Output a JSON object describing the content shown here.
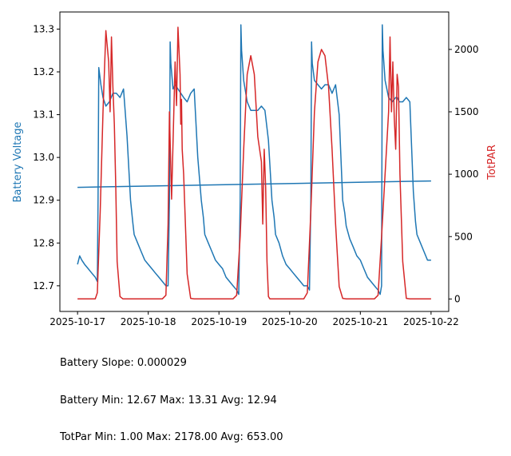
{
  "colors": {
    "battery": "#1f77b4",
    "par": "#d62728",
    "axis": "#000000",
    "background": "#ffffff"
  },
  "stats": {
    "slope_line": "Battery Slope: 0.000029",
    "battery_line": "Battery Min: 12.67 Max: 13.31 Avg: 12.94",
    "par_line": "TotPar Min: 1.00 Max: 2178.00 Avg: 653.00"
  },
  "chart_data": {
    "type": "line",
    "title": "",
    "xlabel": "",
    "ylabel": "Battery Voltage",
    "y2label": "TotPAR",
    "x_unit": "days since 2025-10-17",
    "xlim": [
      -0.25,
      5.25
    ],
    "ylim": [
      12.64,
      13.34
    ],
    "y2lim": [
      -100,
      2300
    ],
    "x_ticks": [
      0,
      1,
      2,
      3,
      4,
      5
    ],
    "x_tick_labels": [
      "2025-10-17",
      "2025-10-18",
      "2025-10-19",
      "2025-10-20",
      "2025-10-21",
      "2025-10-22"
    ],
    "y_ticks": [
      12.7,
      12.8,
      12.9,
      13.0,
      13.1,
      13.2,
      13.3
    ],
    "y_tick_labels": [
      "12.7",
      "12.8",
      "12.9",
      "13.0",
      "13.1",
      "13.2",
      "13.3"
    ],
    "y2_ticks": [
      0,
      500,
      1000,
      1500,
      2000
    ],
    "y2_tick_labels": [
      "0",
      "500",
      "1000",
      "1500",
      "2000"
    ],
    "series": [
      {
        "name": "Battery Voltage",
        "axis": "left",
        "color": "#1f77b4",
        "x": [
          0.0,
          0.03,
          0.06,
          0.1,
          0.15,
          0.2,
          0.25,
          0.28,
          0.29,
          0.3,
          0.33,
          0.36,
          0.4,
          0.45,
          0.5,
          0.55,
          0.6,
          0.65,
          0.7,
          0.75,
          0.78,
          0.8,
          0.85,
          0.9,
          0.95,
          1.0,
          1.05,
          1.1,
          1.15,
          1.2,
          1.25,
          1.28,
          1.3,
          1.31,
          1.32,
          1.35,
          1.38,
          1.42,
          1.5,
          1.55,
          1.6,
          1.65,
          1.7,
          1.75,
          1.78,
          1.8,
          1.85,
          1.9,
          1.95,
          2.0,
          2.05,
          2.1,
          2.15,
          2.2,
          2.25,
          2.28,
          2.3,
          2.31,
          2.32,
          2.35,
          2.4,
          2.45,
          2.5,
          2.55,
          2.6,
          2.65,
          2.7,
          2.75,
          2.78,
          2.8,
          2.85,
          2.9,
          2.95,
          3.0,
          3.05,
          3.1,
          3.15,
          3.2,
          3.25,
          3.28,
          3.3,
          3.31,
          3.32,
          3.35,
          3.4,
          3.45,
          3.5,
          3.55,
          3.6,
          3.65,
          3.7,
          3.75,
          3.78,
          3.8,
          3.85,
          3.9,
          3.95,
          4.0,
          4.05,
          4.1,
          4.15,
          4.2,
          4.25,
          4.28,
          4.3,
          4.31,
          4.32,
          4.35,
          4.4,
          4.45,
          4.5,
          4.52,
          4.55,
          4.6,
          4.65,
          4.7,
          4.75,
          4.78,
          4.8,
          4.85,
          4.9,
          4.95,
          5.0
        ],
        "y": [
          12.75,
          12.77,
          12.76,
          12.75,
          12.74,
          12.73,
          12.72,
          12.71,
          12.9,
          13.21,
          13.17,
          13.14,
          13.12,
          13.13,
          13.15,
          13.15,
          13.14,
          13.16,
          13.05,
          12.9,
          12.85,
          12.82,
          12.8,
          12.78,
          12.76,
          12.75,
          12.74,
          12.73,
          12.72,
          12.71,
          12.7,
          12.7,
          12.9,
          13.27,
          13.22,
          13.16,
          13.17,
          13.16,
          13.14,
          13.13,
          13.15,
          13.16,
          13.0,
          12.9,
          12.86,
          12.82,
          12.8,
          12.78,
          12.76,
          12.75,
          12.74,
          12.72,
          12.71,
          12.7,
          12.69,
          12.68,
          12.9,
          13.31,
          13.25,
          13.18,
          13.13,
          13.11,
          13.11,
          13.11,
          13.12,
          13.11,
          13.04,
          12.9,
          12.86,
          12.82,
          12.8,
          12.77,
          12.75,
          12.74,
          12.73,
          12.72,
          12.71,
          12.7,
          12.7,
          12.69,
          12.9,
          13.27,
          13.22,
          13.18,
          13.17,
          13.16,
          13.17,
          13.17,
          13.15,
          13.17,
          13.1,
          12.9,
          12.87,
          12.84,
          12.81,
          12.79,
          12.77,
          12.76,
          12.74,
          12.72,
          12.71,
          12.7,
          12.69,
          12.68,
          12.7,
          13.31,
          13.25,
          13.18,
          13.14,
          13.13,
          13.14,
          13.14,
          13.13,
          13.13,
          13.14,
          13.13,
          12.92,
          12.85,
          12.82,
          12.8,
          12.78,
          12.76,
          12.76
        ]
      },
      {
        "name": "Battery trend",
        "axis": "left",
        "color": "#1f77b4",
        "x": [
          0.0,
          5.0
        ],
        "y": [
          12.93,
          12.945
        ]
      },
      {
        "name": "TotPAR",
        "axis": "right",
        "color": "#d62728",
        "x": [
          0.0,
          0.1,
          0.2,
          0.25,
          0.28,
          0.32,
          0.36,
          0.4,
          0.44,
          0.46,
          0.48,
          0.5,
          0.52,
          0.54,
          0.56,
          0.6,
          0.64,
          0.68,
          0.7,
          0.72,
          0.74,
          0.78,
          0.9,
          1.0,
          1.1,
          1.2,
          1.25,
          1.28,
          1.3,
          1.33,
          1.35,
          1.38,
          1.4,
          1.42,
          1.45,
          1.46,
          1.47,
          1.48,
          1.5,
          1.55,
          1.6,
          1.65,
          1.7,
          1.75,
          1.8,
          1.9,
          2.0,
          2.1,
          2.2,
          2.25,
          2.3,
          2.35,
          2.4,
          2.45,
          2.5,
          2.55,
          2.6,
          2.62,
          2.64,
          2.66,
          2.68,
          2.7,
          2.72,
          2.75,
          2.8,
          2.9,
          3.0,
          3.1,
          3.2,
          3.25,
          3.3,
          3.35,
          3.4,
          3.45,
          3.5,
          3.55,
          3.6,
          3.65,
          3.7,
          3.75,
          3.8,
          3.9,
          4.0,
          4.1,
          4.2,
          4.25,
          4.3,
          4.35,
          4.4,
          4.42,
          4.44,
          4.46,
          4.48,
          4.5,
          4.52,
          4.54,
          4.56,
          4.6,
          4.65,
          4.7,
          4.75,
          4.8,
          4.9,
          5.0
        ],
        "y": [
          1,
          1,
          1,
          1,
          50,
          700,
          1500,
          2150,
          1900,
          1500,
          2100,
          1700,
          1400,
          900,
          300,
          20,
          1,
          1,
          1,
          1,
          1,
          1,
          1,
          1,
          1,
          1,
          30,
          600,
          1500,
          800,
          1250,
          1900,
          1550,
          2178,
          1800,
          1400,
          1600,
          1200,
          1000,
          200,
          5,
          1,
          1,
          1,
          1,
          1,
          1,
          1,
          1,
          30,
          500,
          1200,
          1800,
          1950,
          1800,
          1300,
          1100,
          600,
          1200,
          900,
          300,
          20,
          1,
          1,
          1,
          1,
          1,
          1,
          1,
          50,
          700,
          1500,
          1900,
          2000,
          1950,
          1700,
          1200,
          600,
          100,
          5,
          1,
          1,
          1,
          1,
          1,
          30,
          500,
          1000,
          1500,
          2100,
          1500,
          1900,
          1450,
          1200,
          1800,
          1700,
          1000,
          300,
          5,
          1,
          1,
          1,
          1,
          1
        ]
      }
    ]
  }
}
